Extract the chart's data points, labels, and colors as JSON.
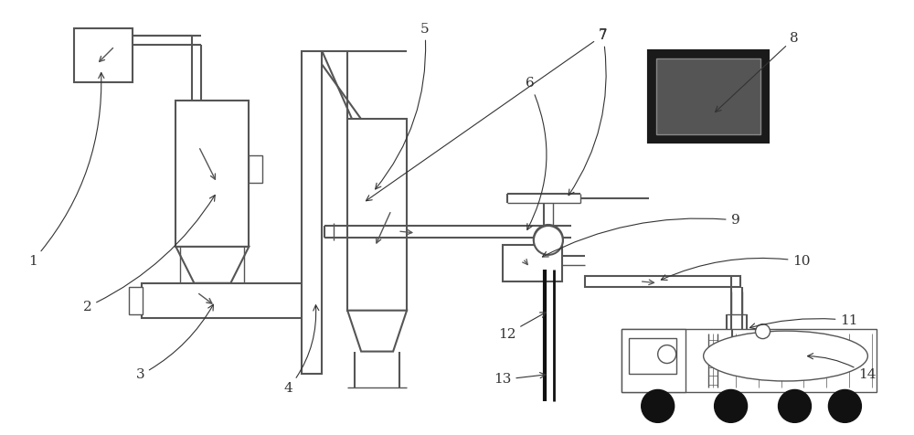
{
  "bg_color": "#ffffff",
  "line_color": "#555555",
  "dark_color": "#111111",
  "label_color": "#333333",
  "lw_thin": 1.0,
  "lw_main": 1.5,
  "lw_thick": 2.0
}
